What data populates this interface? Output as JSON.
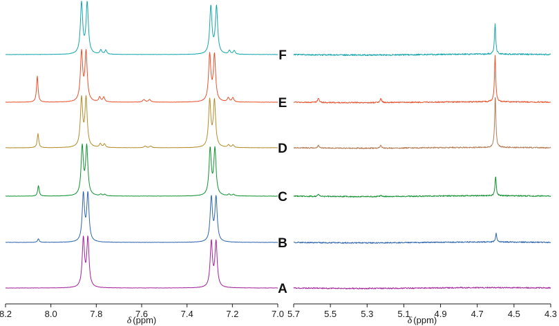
{
  "chart_data": [
    {
      "type": "line",
      "panel": "aromatic",
      "xlim": [
        8.2,
        7.0
      ],
      "x_reversed": true,
      "xlabel_symbol": "δ",
      "xlabel_unit": "(ppm)",
      "ticks": [
        "8.2",
        "8.0",
        "7.8",
        "7.6",
        "7.4",
        "7.2",
        "7.0"
      ],
      "tick_values": [
        8.2,
        8.0,
        7.8,
        7.6,
        7.4,
        7.2,
        7.0
      ],
      "y_axis": "none",
      "series": [
        {
          "name": "A",
          "color": "#a2229a",
          "peaks": [
            {
              "x": 7.857,
              "h": 0.92,
              "w": 0.006
            },
            {
              "x": 7.837,
              "h": 0.92,
              "w": 0.006
            },
            {
              "x": 7.293,
              "h": 0.86,
              "w": 0.006
            },
            {
              "x": 7.272,
              "h": 0.86,
              "w": 0.006
            }
          ]
        },
        {
          "name": "B",
          "color": "#2c64ad",
          "peaks": [
            {
              "x": 8.055,
              "h": 0.07,
              "w": 0.004
            },
            {
              "x": 7.857,
              "h": 0.9,
              "w": 0.006
            },
            {
              "x": 7.837,
              "h": 0.9,
              "w": 0.006
            },
            {
              "x": 7.293,
              "h": 0.84,
              "w": 0.006
            },
            {
              "x": 7.272,
              "h": 0.84,
              "w": 0.006
            }
          ]
        },
        {
          "name": "C",
          "color": "#119131",
          "peaks": [
            {
              "x": 8.055,
              "h": 0.2,
              "w": 0.004
            },
            {
              "x": 7.862,
              "h": 0.92,
              "w": 0.006
            },
            {
              "x": 7.842,
              "h": 0.92,
              "w": 0.006
            },
            {
              "x": 7.78,
              "h": 0.03,
              "w": 0.005
            },
            {
              "x": 7.762,
              "h": 0.03,
              "w": 0.005
            },
            {
              "x": 7.298,
              "h": 0.88,
              "w": 0.006
            },
            {
              "x": 7.277,
              "h": 0.88,
              "w": 0.006
            },
            {
              "x": 7.215,
              "h": 0.03,
              "w": 0.005
            },
            {
              "x": 7.195,
              "h": 0.03,
              "w": 0.005
            }
          ]
        },
        {
          "name": "D",
          "color": "#b48c2b",
          "peaks": [
            {
              "x": 8.057,
              "h": 0.27,
              "w": 0.004
            },
            {
              "x": 7.865,
              "h": 0.92,
              "w": 0.006
            },
            {
              "x": 7.845,
              "h": 0.92,
              "w": 0.006
            },
            {
              "x": 7.782,
              "h": 0.07,
              "w": 0.005
            },
            {
              "x": 7.764,
              "h": 0.07,
              "w": 0.005
            },
            {
              "x": 7.585,
              "h": 0.03,
              "w": 0.006
            },
            {
              "x": 7.56,
              "h": 0.03,
              "w": 0.006
            },
            {
              "x": 7.3,
              "h": 0.88,
              "w": 0.006
            },
            {
              "x": 7.279,
              "h": 0.88,
              "w": 0.006
            },
            {
              "x": 7.217,
              "h": 0.05,
              "w": 0.005
            },
            {
              "x": 7.197,
              "h": 0.05,
              "w": 0.005
            }
          ]
        },
        {
          "name": "E",
          "color": "#e8512c",
          "peaks": [
            {
              "x": 8.06,
              "h": 0.5,
              "w": 0.004
            },
            {
              "x": 7.865,
              "h": 0.93,
              "w": 0.006
            },
            {
              "x": 7.845,
              "h": 0.93,
              "w": 0.006
            },
            {
              "x": 7.785,
              "h": 0.09,
              "w": 0.005
            },
            {
              "x": 7.767,
              "h": 0.09,
              "w": 0.005
            },
            {
              "x": 7.59,
              "h": 0.05,
              "w": 0.006
            },
            {
              "x": 7.565,
              "h": 0.05,
              "w": 0.006
            },
            {
              "x": 7.3,
              "h": 0.88,
              "w": 0.006
            },
            {
              "x": 7.279,
              "h": 0.88,
              "w": 0.006
            },
            {
              "x": 7.218,
              "h": 0.08,
              "w": 0.005
            },
            {
              "x": 7.198,
              "h": 0.08,
              "w": 0.005
            }
          ]
        },
        {
          "name": "F",
          "color": "#15a6ac",
          "peaks": [
            {
              "x": 7.865,
              "h": 0.97,
              "w": 0.006
            },
            {
              "x": 7.84,
              "h": 0.97,
              "w": 0.006
            },
            {
              "x": 7.78,
              "h": 0.08,
              "w": 0.005
            },
            {
              "x": 7.758,
              "h": 0.08,
              "w": 0.005
            },
            {
              "x": 7.295,
              "h": 0.9,
              "w": 0.006
            },
            {
              "x": 7.27,
              "h": 0.9,
              "w": 0.006
            },
            {
              "x": 7.213,
              "h": 0.07,
              "w": 0.005
            },
            {
              "x": 7.192,
              "h": 0.07,
              "w": 0.005
            }
          ]
        }
      ]
    },
    {
      "type": "line",
      "panel": "aliphatic",
      "xlim": [
        5.7,
        4.3
      ],
      "x_reversed": true,
      "xlabel_symbol": "δ",
      "xlabel_unit": "(ppm)",
      "ticks": [
        "5.7",
        "5.5",
        "5.3",
        "5.1",
        "4.9",
        "4.7",
        "4.5",
        "4.3"
      ],
      "tick_values": [
        5.7,
        5.5,
        5.3,
        5.1,
        4.9,
        4.7,
        4.5,
        4.3
      ],
      "y_axis": "none",
      "series": [
        {
          "name": "A",
          "color": "#a2229a",
          "noise": 0.03,
          "peaks": []
        },
        {
          "name": "B",
          "color": "#2c64ad",
          "noise": 0.03,
          "peaks": [
            {
              "x": 4.597,
              "h": 0.45,
              "w": 0.004
            }
          ]
        },
        {
          "name": "C",
          "color": "#119131",
          "noise": 0.03,
          "peaks": [
            {
              "x": 5.565,
              "h": 0.1,
              "w": 0.005
            },
            {
              "x": 5.225,
              "h": 0.06,
              "w": 0.005
            },
            {
              "x": 4.6,
              "h": 1.0,
              "w": 0.004
            }
          ]
        },
        {
          "name": "D",
          "color": "#b47a52",
          "noise": 0.03,
          "peaks": [
            {
              "x": 5.565,
              "h": 0.14,
              "w": 0.005
            },
            {
              "x": 5.225,
              "h": 0.14,
              "w": 0.005
            },
            {
              "x": 4.602,
              "h": 2.7,
              "w": 0.004
            }
          ]
        },
        {
          "name": "E",
          "color": "#e8512c",
          "noise": 0.03,
          "peaks": [
            {
              "x": 5.565,
              "h": 0.22,
              "w": 0.005
            },
            {
              "x": 5.225,
              "h": 0.2,
              "w": 0.005
            },
            {
              "x": 4.603,
              "h": 2.4,
              "w": 0.004
            }
          ]
        },
        {
          "name": "F",
          "color": "#15a6ac",
          "noise": 0.035,
          "peaks": [
            {
              "x": 4.603,
              "h": 1.6,
              "w": 0.004
            }
          ]
        }
      ]
    }
  ],
  "trace_labels": [
    "F",
    "E",
    "D",
    "C",
    "B",
    "A"
  ]
}
